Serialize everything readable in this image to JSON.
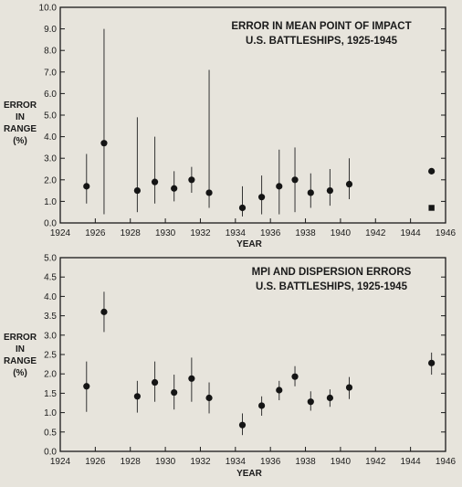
{
  "chart_data": [
    {
      "type": "scatter",
      "title_lines": [
        "ERROR IN MEAN POINT OF IMPACT",
        "U.S. BATTLESHIPS, 1925-1945"
      ],
      "ylabel_lines": [
        "ERROR",
        "IN",
        "RANGE",
        "(%)"
      ],
      "xlabel": "YEAR",
      "xlim": [
        1924,
        1946
      ],
      "ylim": [
        0,
        10
      ],
      "x_ticks": [
        1924,
        1926,
        1928,
        1930,
        1932,
        1934,
        1936,
        1938,
        1940,
        1942,
        1944,
        1946
      ],
      "y_ticks": [
        "0.0",
        "1.0",
        "2.0",
        "3.0",
        "4.0",
        "5.0",
        "6.0",
        "7.0",
        "8.0",
        "9.0",
        "10.0"
      ],
      "grid": false,
      "points": [
        {
          "x": 1925.5,
          "y": 1.7,
          "low": 0.9,
          "high": 3.2
        },
        {
          "x": 1926.5,
          "y": 3.7,
          "low": 0.4,
          "high": 9.0
        },
        {
          "x": 1928.4,
          "y": 1.5,
          "low": 0.5,
          "high": 4.9
        },
        {
          "x": 1929.4,
          "y": 1.9,
          "low": 0.9,
          "high": 4.0
        },
        {
          "x": 1930.5,
          "y": 1.6,
          "low": 1.0,
          "high": 2.4
        },
        {
          "x": 1931.5,
          "y": 2.0,
          "low": 1.4,
          "high": 2.6
        },
        {
          "x": 1932.5,
          "y": 1.4,
          "low": 0.7,
          "high": 7.1
        },
        {
          "x": 1934.4,
          "y": 0.7,
          "low": 0.3,
          "high": 1.7
        },
        {
          "x": 1935.5,
          "y": 1.2,
          "low": 0.4,
          "high": 2.2
        },
        {
          "x": 1936.5,
          "y": 1.7,
          "low": 0.4,
          "high": 3.4
        },
        {
          "x": 1937.4,
          "y": 2.0,
          "low": 0.5,
          "high": 3.5
        },
        {
          "x": 1938.3,
          "y": 1.4,
          "low": 0.7,
          "high": 2.3
        },
        {
          "x": 1939.4,
          "y": 1.5,
          "low": 0.8,
          "high": 2.5
        },
        {
          "x": 1940.5,
          "y": 1.8,
          "low": 1.1,
          "high": 3.0
        }
      ],
      "extra_markers": [
        {
          "x": 1945.2,
          "y": 2.4,
          "shape": "circle"
        },
        {
          "x": 1945.2,
          "y": 0.7,
          "shape": "square"
        }
      ]
    },
    {
      "type": "scatter",
      "title_lines": [
        "MPI AND DISPERSION ERRORS",
        "U.S. BATTLESHIPS, 1925-1945"
      ],
      "ylabel_lines": [
        "ERROR",
        "IN",
        "RANGE",
        "(%)"
      ],
      "xlabel": "YEAR",
      "xlim": [
        1924,
        1946
      ],
      "ylim": [
        0,
        5
      ],
      "x_ticks": [
        1924,
        1926,
        1928,
        1930,
        1932,
        1934,
        1936,
        1938,
        1940,
        1942,
        1944,
        1946
      ],
      "y_ticks": [
        "0.0",
        "0.5",
        "1.0",
        "1.5",
        "2.0",
        "2.5",
        "3.0",
        "3.5",
        "4.0",
        "4.5",
        "5.0"
      ],
      "grid": false,
      "points": [
        {
          "x": 1925.5,
          "y": 1.68,
          "low": 1.02,
          "high": 2.32
        },
        {
          "x": 1926.5,
          "y": 3.6,
          "low": 3.08,
          "high": 4.12
        },
        {
          "x": 1928.4,
          "y": 1.42,
          "low": 1.0,
          "high": 1.82
        },
        {
          "x": 1929.4,
          "y": 1.78,
          "low": 1.28,
          "high": 2.32
        },
        {
          "x": 1930.5,
          "y": 1.52,
          "low": 1.08,
          "high": 1.98
        },
        {
          "x": 1931.5,
          "y": 1.88,
          "low": 1.28,
          "high": 2.42
        },
        {
          "x": 1932.5,
          "y": 1.38,
          "low": 0.98,
          "high": 1.78
        },
        {
          "x": 1934.4,
          "y": 0.68,
          "low": 0.42,
          "high": 0.98
        },
        {
          "x": 1935.5,
          "y": 1.18,
          "low": 0.92,
          "high": 1.42
        },
        {
          "x": 1936.5,
          "y": 1.58,
          "low": 1.32,
          "high": 1.82
        },
        {
          "x": 1937.4,
          "y": 1.93,
          "low": 1.68,
          "high": 2.2
        },
        {
          "x": 1938.3,
          "y": 1.28,
          "low": 1.05,
          "high": 1.55
        },
        {
          "x": 1939.4,
          "y": 1.38,
          "low": 1.15,
          "high": 1.6
        },
        {
          "x": 1940.5,
          "y": 1.65,
          "low": 1.35,
          "high": 1.92
        },
        {
          "x": 1945.2,
          "y": 2.28,
          "low": 1.98,
          "high": 2.55
        }
      ],
      "extra_markers": []
    }
  ]
}
